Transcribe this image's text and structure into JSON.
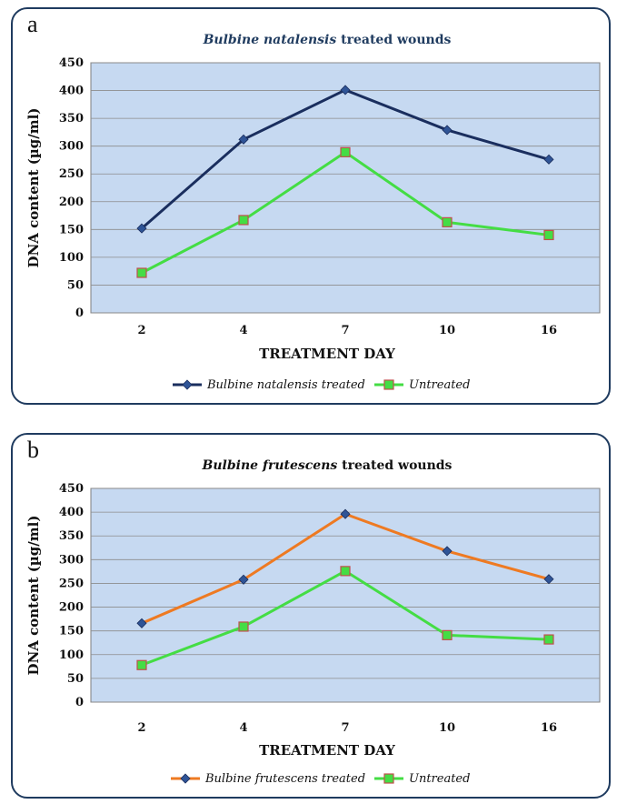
{
  "chart_data": [
    {
      "panel_letter": "a",
      "type": "line",
      "title_italic": "Bulbine natalensis",
      "title_rest": " treated wounds",
      "title_color": "#1f3b5f",
      "xlabel": "TREATMENT DAY",
      "ylabel": "DNA content (µg/ml)",
      "ylim": [
        0,
        450
      ],
      "yticks": [
        0,
        50,
        100,
        150,
        200,
        250,
        300,
        350,
        400,
        450
      ],
      "categories": [
        "2",
        "4",
        "7",
        "10",
        "16"
      ],
      "grid": true,
      "legend_position": "bottom",
      "series": [
        {
          "name": "Bulbine natalensis treated",
          "values": [
            152,
            312,
            401,
            329,
            276
          ],
          "color": "#1a2e5e",
          "marker": "diamond",
          "marker_color": "#2f5496"
        },
        {
          "name": "Untreated",
          "values": [
            72,
            167,
            289,
            163,
            140
          ],
          "color": "#44dd44",
          "marker": "square",
          "marker_color": "#44dd44"
        }
      ]
    },
    {
      "panel_letter": "b",
      "type": "line",
      "title_italic": "Bulbine frutescens",
      "title_rest": " treated wounds",
      "title_color": "#111111",
      "xlabel": "TREATMENT DAY",
      "ylabel": "DNA content (µg/ml)",
      "ylim": [
        0,
        450
      ],
      "yticks": [
        0,
        50,
        100,
        150,
        200,
        250,
        300,
        350,
        400,
        450
      ],
      "categories": [
        "2",
        "4",
        "7",
        "10",
        "16"
      ],
      "grid": true,
      "legend_position": "bottom",
      "series": [
        {
          "name": "Bulbine frutescens treated",
          "values": [
            166,
            258,
            396,
            318,
            259
          ],
          "color": "#ee7a22",
          "marker": "diamond",
          "marker_color": "#2f5496"
        },
        {
          "name": "Untreated",
          "values": [
            78,
            159,
            276,
            141,
            132
          ],
          "color": "#44dd44",
          "marker": "square",
          "marker_color": "#44dd44"
        }
      ]
    }
  ]
}
